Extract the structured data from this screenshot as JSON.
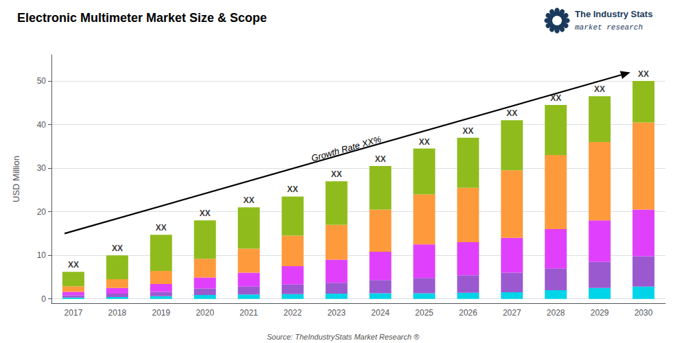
{
  "chart_data": {
    "type": "bar",
    "title": "Electronic Multimeter Market Size & Scope",
    "ylabel": "USD Million",
    "categories": [
      2017,
      2018,
      2019,
      2020,
      2021,
      2022,
      2023,
      2024,
      2025,
      2026,
      2027,
      2028,
      2029,
      2030
    ],
    "series": [
      {
        "color": "#00d4e8",
        "values": [
          0.3,
          0.4,
          0.6,
          0.9,
          1.0,
          1.1,
          1.2,
          1.3,
          1.3,
          1.4,
          1.5,
          2.0,
          2.5,
          2.8
        ]
      },
      {
        "color": "#9b59d0",
        "values": [
          0.5,
          0.8,
          1.0,
          1.5,
          1.8,
          2.2,
          2.5,
          3.0,
          3.5,
          4.0,
          4.5,
          5.0,
          6.0,
          7.0
        ]
      },
      {
        "color": "#e040fb",
        "values": [
          0.8,
          1.3,
          1.8,
          2.5,
          3.2,
          4.2,
          5.3,
          6.5,
          7.7,
          7.6,
          8.0,
          9.0,
          9.5,
          10.7
        ]
      },
      {
        "color": "#ff9a3c",
        "values": [
          1.3,
          2.0,
          3.0,
          4.3,
          5.5,
          7.0,
          8.0,
          9.7,
          11.5,
          12.5,
          15.5,
          17.0,
          18.0,
          20.0
        ]
      },
      {
        "color": "#8fbc1c",
        "values": [
          3.3,
          5.5,
          8.3,
          8.8,
          9.5,
          9.0,
          10.0,
          10.0,
          10.5,
          11.5,
          11.5,
          11.5,
          10.5,
          9.5
        ]
      }
    ],
    "stacked": true,
    "ylim": [
      -1,
      56
    ],
    "yticks": [
      0,
      10,
      20,
      30,
      40,
      50
    ],
    "grid": true,
    "annotations": [
      {
        "text": "XX",
        "x": 2017,
        "y": 6.2
      },
      {
        "text": "XX",
        "x": 2018,
        "y": 10.0
      },
      {
        "text": "XX",
        "x": 2019,
        "y": 14.7
      },
      {
        "text": "XX",
        "x": 2020,
        "y": 18.0
      },
      {
        "text": "XX",
        "x": 2021,
        "y": 21.0
      },
      {
        "text": "XX",
        "x": 2022,
        "y": 23.5
      },
      {
        "text": "XX",
        "x": 2023,
        "y": 27.0
      },
      {
        "text": "XX",
        "x": 2024,
        "y": 30.5
      },
      {
        "text": "XX",
        "x": 2025,
        "y": 34.5
      },
      {
        "text": "XX",
        "x": 2026,
        "y": 37.0
      },
      {
        "text": "XX",
        "x": 2027,
        "y": 41.0
      },
      {
        "text": "XX",
        "x": 2028,
        "y": 44.5
      },
      {
        "text": "XX",
        "x": 2029,
        "y": 46.5
      },
      {
        "text": "XX",
        "x": 2030,
        "y": 50.0
      },
      {
        "text": "Growth Rate XX%",
        "arrow": {
          "x": [
            2016.8,
            2029.7
          ],
          "y": [
            15.0,
            52.0
          ]
        }
      },
      {
        "text": "Source: TheIndustryStats Market Research ®"
      },
      {
        "text": "The Industry Stats",
        "color": "#1a3a5c"
      },
      {
        "text": "market research",
        "color": "#1a3a5c"
      }
    ]
  }
}
